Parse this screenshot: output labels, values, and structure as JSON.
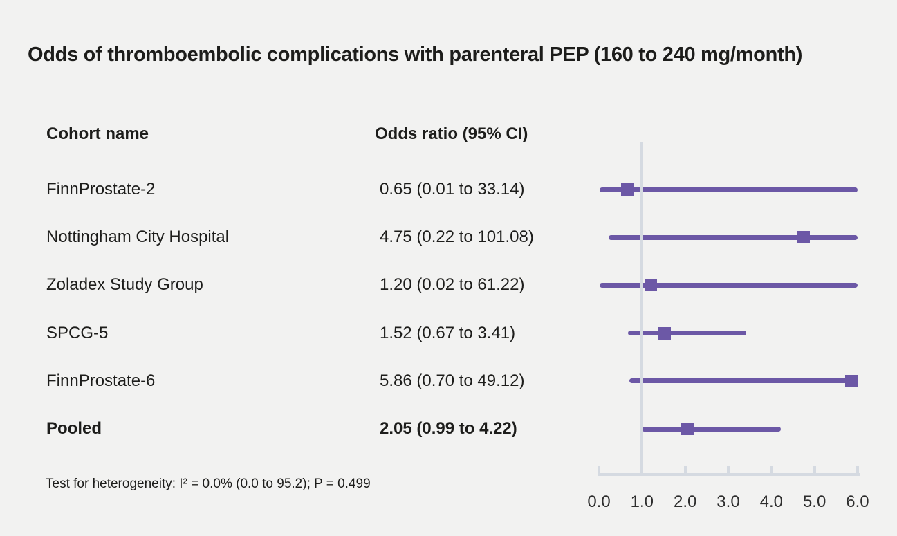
{
  "title": "Odds of thromboembolic complications with parenteral PEP (160 to 240 mg/month)",
  "columns": {
    "cohort": "Cohort name",
    "odds_ratio": "Odds ratio (95% CI)"
  },
  "footnote": "Test for heterogeneity: I² = 0.0% (0.0 to 95.2); P = 0.499",
  "colors": {
    "accent": "#6c58a6",
    "axis": "#d5dae1",
    "background": "#f2f2f1",
    "text": "#1d1d1b"
  },
  "chart_data": {
    "type": "forest",
    "title": "Odds of thromboembolic complications with parenteral PEP (160 to 240 mg/month)",
    "xlim": [
      0.0,
      6.0
    ],
    "x_ticks": [
      "0.0",
      "1.0",
      "2.0",
      "3.0",
      "4.0",
      "5.0",
      "6.0"
    ],
    "reference_line": 1.0,
    "grid": false,
    "rows": [
      {
        "label": "FinnProstate-2",
        "display": "0.65 (0.01 to 33.14)",
        "or": 0.65,
        "ci_low": 0.01,
        "ci_high": 33.14,
        "bold": false
      },
      {
        "label": "Nottingham City Hospital",
        "display": "4.75 (0.22 to 101.08)",
        "or": 4.75,
        "ci_low": 0.22,
        "ci_high": 101.08,
        "bold": false
      },
      {
        "label": "Zoladex Study Group",
        "display": "1.20 (0.02 to 61.22)",
        "or": 1.2,
        "ci_low": 0.02,
        "ci_high": 61.22,
        "bold": false
      },
      {
        "label": "SPCG-5",
        "display": "1.52 (0.67 to 3.41)",
        "or": 1.52,
        "ci_low": 0.67,
        "ci_high": 3.41,
        "bold": false
      },
      {
        "label": "FinnProstate-6",
        "display": "5.86 (0.70 to 49.12)",
        "or": 5.86,
        "ci_low": 0.7,
        "ci_high": 49.12,
        "bold": false
      },
      {
        "label": "Pooled",
        "display": "2.05 (0.99 to 4.22)",
        "or": 2.05,
        "ci_low": 0.99,
        "ci_high": 4.22,
        "bold": true
      }
    ]
  }
}
